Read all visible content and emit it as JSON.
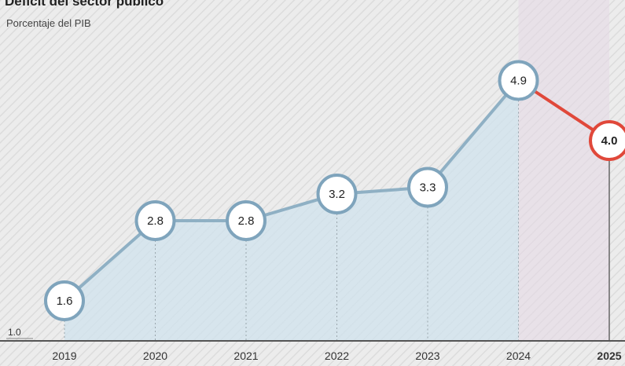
{
  "header": {
    "title": "Déficit del sector público",
    "subtitle": "Porcentaje del PIB"
  },
  "colors": {
    "line": "#8fb0c4",
    "marker_border": "#7fa4bc",
    "highlight": "#e0483a",
    "area": "#cfe3ee",
    "projection_band": "#e6d8e6",
    "axis": "#555555",
    "text": "#333333"
  },
  "chart_data": {
    "type": "line",
    "title": "Déficit del sector público",
    "subtitle": "Porcentaje del PIB",
    "categories": [
      "2019",
      "2020",
      "2021",
      "2022",
      "2023",
      "2024",
      "2025"
    ],
    "series": [
      {
        "values": [
          1.6,
          2.8,
          2.8,
          3.2,
          3.3,
          4.9,
          4.0
        ]
      }
    ],
    "data_labels": [
      "1.6",
      "2.8",
      "2.8",
      "3.2",
      "3.3",
      "4.9",
      "4.0"
    ],
    "highlighted_index": 6,
    "y_axis_label": "1.0",
    "ylim": [
      1.0,
      5.0
    ],
    "grid": false,
    "legend": "none"
  }
}
